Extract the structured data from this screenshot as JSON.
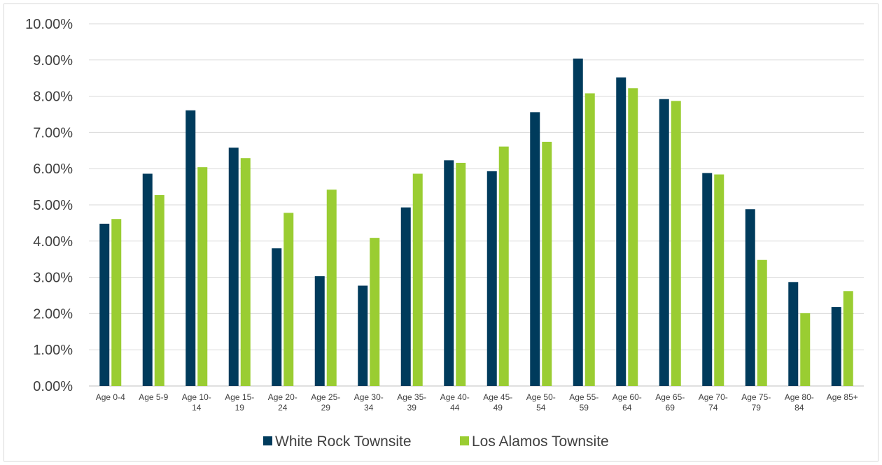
{
  "chart_data": {
    "type": "bar",
    "categories": [
      [
        "Age 0-4"
      ],
      [
        "Age 5-9"
      ],
      [
        "Age 10-",
        "14"
      ],
      [
        "Age 15-",
        "19"
      ],
      [
        "Age 20-",
        "24"
      ],
      [
        "Age 25-",
        "29"
      ],
      [
        "Age 30-",
        "34"
      ],
      [
        "Age 35-",
        "39"
      ],
      [
        "Age 40-",
        "44"
      ],
      [
        "Age 45-",
        "49"
      ],
      [
        "Age 50-",
        "54"
      ],
      [
        "Age 55-",
        "59"
      ],
      [
        "Age 60-",
        "64"
      ],
      [
        "Age 65-",
        "69"
      ],
      [
        "Age 70-",
        "74"
      ],
      [
        "Age 75-",
        "79"
      ],
      [
        "Age 80-",
        "84"
      ],
      [
        "Age 85+"
      ]
    ],
    "series": [
      {
        "name": "White Rock Townsite",
        "color": "#003b5c",
        "values": [
          4.48,
          5.86,
          7.61,
          6.58,
          3.8,
          3.03,
          2.77,
          4.93,
          6.23,
          5.93,
          7.56,
          9.04,
          8.52,
          7.92,
          5.88,
          4.88,
          2.87,
          2.18
        ]
      },
      {
        "name": "Los Alamos Townsite",
        "color": "#9acd32",
        "values": [
          4.61,
          5.27,
          6.04,
          6.29,
          4.78,
          5.42,
          4.09,
          5.86,
          6.16,
          6.61,
          6.74,
          8.08,
          8.22,
          7.87,
          5.84,
          3.48,
          2.01,
          2.62
        ]
      }
    ],
    "yticks": [
      "0.00%",
      "1.00%",
      "2.00%",
      "3.00%",
      "4.00%",
      "5.00%",
      "6.00%",
      "7.00%",
      "8.00%",
      "9.00%",
      "10.00%"
    ],
    "ylim": [
      0,
      10
    ],
    "grid": true,
    "legend_position": "bottom"
  }
}
